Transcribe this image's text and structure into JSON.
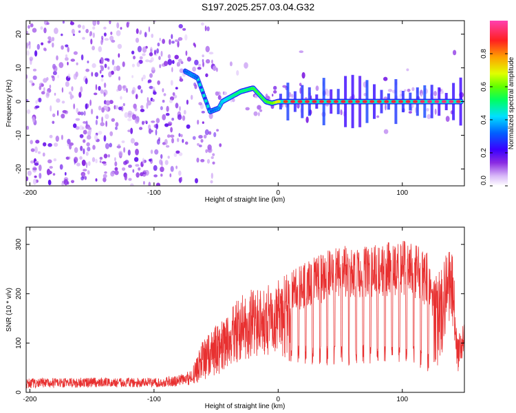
{
  "title": "S197.2025.257.03.04.G32",
  "chart_data": [
    {
      "type": "heatmap",
      "xlabel": "Height of straight line (km)",
      "ylabel": "Frequency (Hz)",
      "xlim": [
        -203,
        150
      ],
      "ylim": [
        -25,
        24
      ],
      "xticks": [
        -200,
        -100,
        0,
        100
      ],
      "yticks": [
        -20,
        -10,
        0,
        10,
        20
      ],
      "colorbar": {
        "label": "Normalized spectral amplitude",
        "range": [
          0,
          1
        ],
        "ticks": [
          0.0,
          0.2,
          0.4,
          0.6,
          0.8
        ]
      },
      "ridge": {
        "heights": [
          -75,
          -70,
          -65,
          -60,
          -55,
          -48,
          -45,
          -40,
          -35,
          -30,
          -25,
          -20,
          -15,
          -10,
          -5,
          0,
          5,
          10,
          20,
          30,
          40,
          50,
          60,
          70,
          80,
          90,
          100,
          110,
          120,
          130,
          140,
          148
        ],
        "frequency": [
          9,
          8,
          7,
          2,
          -3,
          -2,
          0,
          1,
          2,
          3,
          3.5,
          4,
          2,
          0,
          -0.5,
          0,
          0,
          0,
          0,
          0,
          0,
          0,
          0,
          0,
          0,
          0,
          0,
          0,
          0,
          0,
          0,
          0
        ],
        "amplitude": [
          0.3,
          0.35,
          0.3,
          0.25,
          0.3,
          0.35,
          0.4,
          0.45,
          0.5,
          0.5,
          0.5,
          0.55,
          0.55,
          0.55,
          0.6,
          0.7,
          0.85,
          0.9,
          0.9,
          0.9,
          0.9,
          0.9,
          0.9,
          0.9,
          0.9,
          0.9,
          0.9,
          0.9,
          0.95,
          0.95,
          0.95,
          0.9
        ]
      }
    },
    {
      "type": "line",
      "xlabel": "Height of straight line (km)",
      "ylabel": "SNR (10 * v/v)",
      "xlim": [
        -203,
        150
      ],
      "ylim": [
        0,
        335
      ],
      "xticks": [
        -200,
        -100,
        0,
        100
      ],
      "yticks": [
        0,
        100,
        200,
        300
      ],
      "color": "#e83030",
      "envelope": {
        "heights": [
          -203,
          -150,
          -100,
          -80,
          -70,
          -60,
          -55,
          -45,
          -40,
          -30,
          -20,
          -10,
          0,
          10,
          20,
          40,
          60,
          80,
          100,
          110,
          120,
          125,
          135,
          140,
          145,
          150
        ],
        "low": [
          8,
          10,
          10,
          12,
          15,
          20,
          30,
          40,
          50,
          60,
          70,
          75,
          80,
          60,
          55,
          55,
          55,
          60,
          60,
          55,
          40,
          30,
          100,
          150,
          20,
          80
        ],
        "high": [
          28,
          30,
          30,
          35,
          45,
          110,
          130,
          145,
          160,
          200,
          210,
          215,
          230,
          245,
          260,
          290,
          300,
          300,
          310,
          300,
          285,
          240,
          280,
          295,
          120,
          140
        ]
      }
    }
  ]
}
